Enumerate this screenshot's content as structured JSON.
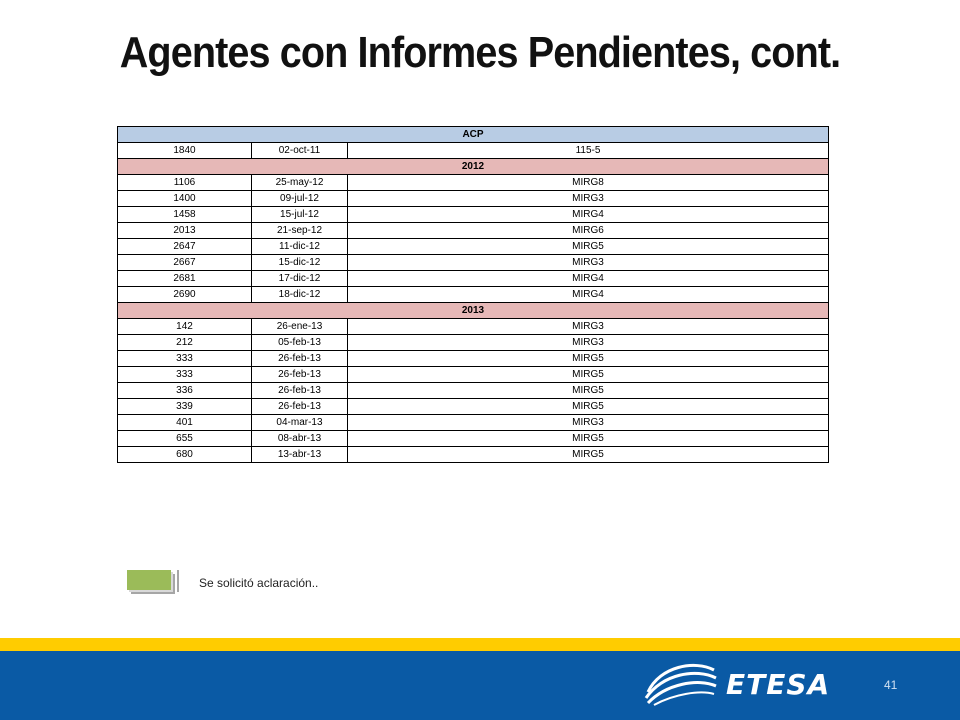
{
  "slide": {
    "title": "Agentes con Informes Pendientes, cont.",
    "page_number": "41"
  },
  "table": {
    "header": "ACP",
    "header_row": [
      "1840",
      "02-oct-11",
      "115-5"
    ],
    "groups": [
      {
        "year": "2012",
        "rows": [
          [
            "1106",
            "25-may-12",
            "MIRG8"
          ],
          [
            "1400",
            "09-jul-12",
            "MIRG3"
          ],
          [
            "1458",
            "15-jul-12",
            "MIRG4"
          ],
          [
            "2013",
            "21-sep-12",
            "MIRG6"
          ],
          [
            "2647",
            "11-dic-12",
            "MIRG5"
          ],
          [
            "2667",
            "15-dic-12",
            "MIRG3"
          ],
          [
            "2681",
            "17-dic-12",
            "MIRG4"
          ],
          [
            "2690",
            "18-dic-12",
            "MIRG4"
          ]
        ]
      },
      {
        "year": "2013",
        "rows": [
          [
            "142",
            "26-ene-13",
            "MIRG3"
          ],
          [
            "212",
            "05-feb-13",
            "MIRG3"
          ],
          [
            "333",
            "26-feb-13",
            "MIRG5"
          ],
          [
            "333",
            "26-feb-13",
            "MIRG5"
          ],
          [
            "336",
            "26-feb-13",
            "MIRG5"
          ],
          [
            "339",
            "26-feb-13",
            "MIRG5"
          ],
          [
            "401",
            "04-mar-13",
            "MIRG3"
          ],
          [
            "655",
            "08-abr-13",
            "MIRG5"
          ],
          [
            "680",
            "13-abr-13",
            "MIRG5"
          ]
        ]
      }
    ]
  },
  "legend": {
    "label": "Se solicitó aclaración..",
    "swatch_color": "#9bbb59"
  },
  "footer": {
    "logo_text": "ETESA",
    "logo_icon": "etesa-globe-icon",
    "yellow_color": "#ffcc00",
    "blue_color": "#0a5aa5"
  }
}
